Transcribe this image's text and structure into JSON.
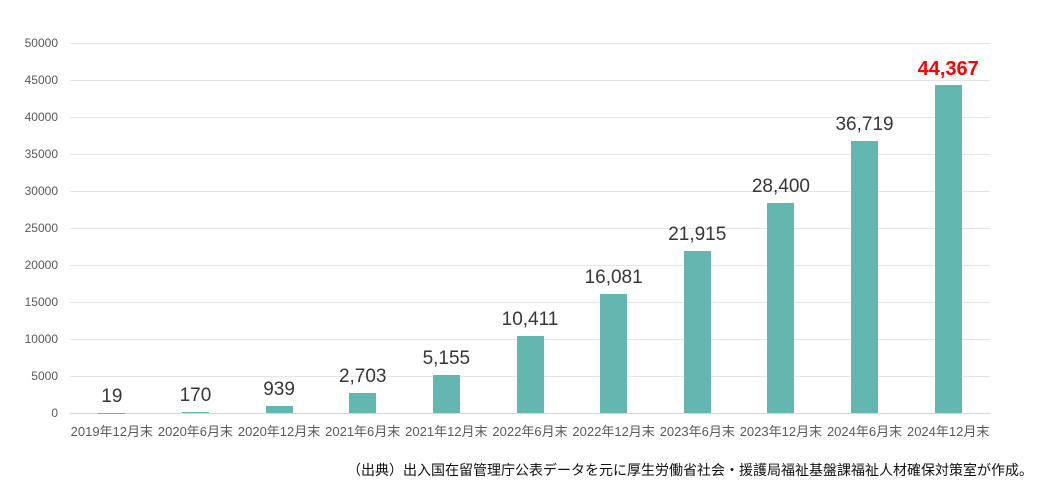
{
  "chart_data": {
    "type": "bar",
    "title": "",
    "xlabel": "",
    "ylabel": "",
    "categories": [
      "2019年12月末",
      "2020年6月末",
      "2020年12月末",
      "2021年6月末",
      "2021年12月末",
      "2022年6月末",
      "2022年12月末",
      "2023年6月末",
      "2023年12月末",
      "2024年6月末",
      "2024年12月末"
    ],
    "values": [
      19,
      170,
      939,
      2703,
      5155,
      10411,
      16081,
      21915,
      28400,
      36719,
      44367
    ],
    "value_labels": [
      "19",
      "170",
      "939",
      "2,703",
      "5,155",
      "10,411",
      "16,081",
      "21,915",
      "28,400",
      "36,719",
      "44,367"
    ],
    "ylim": [
      0,
      50000
    ],
    "ytick_step": 5000,
    "ytick_labels": [
      "0",
      "5000",
      "10000",
      "15000",
      "20000",
      "25000",
      "30000",
      "35000",
      "40000",
      "45000",
      "50000"
    ],
    "grid": true,
    "legend_position": "none",
    "colors": {
      "bar": "#64b6b1",
      "gridline": "#e6e6e6",
      "baseline": "#d6d6d6",
      "axis_text": "#595959",
      "value_text": "#373737",
      "highlight_text": "#ff0000"
    },
    "highlight_last": true
  },
  "caption": "（出典）出入国在留管理庁公表データを元に厚生労働省社会・援護局福祉基盤課福祉人材確保対策室が作成。"
}
